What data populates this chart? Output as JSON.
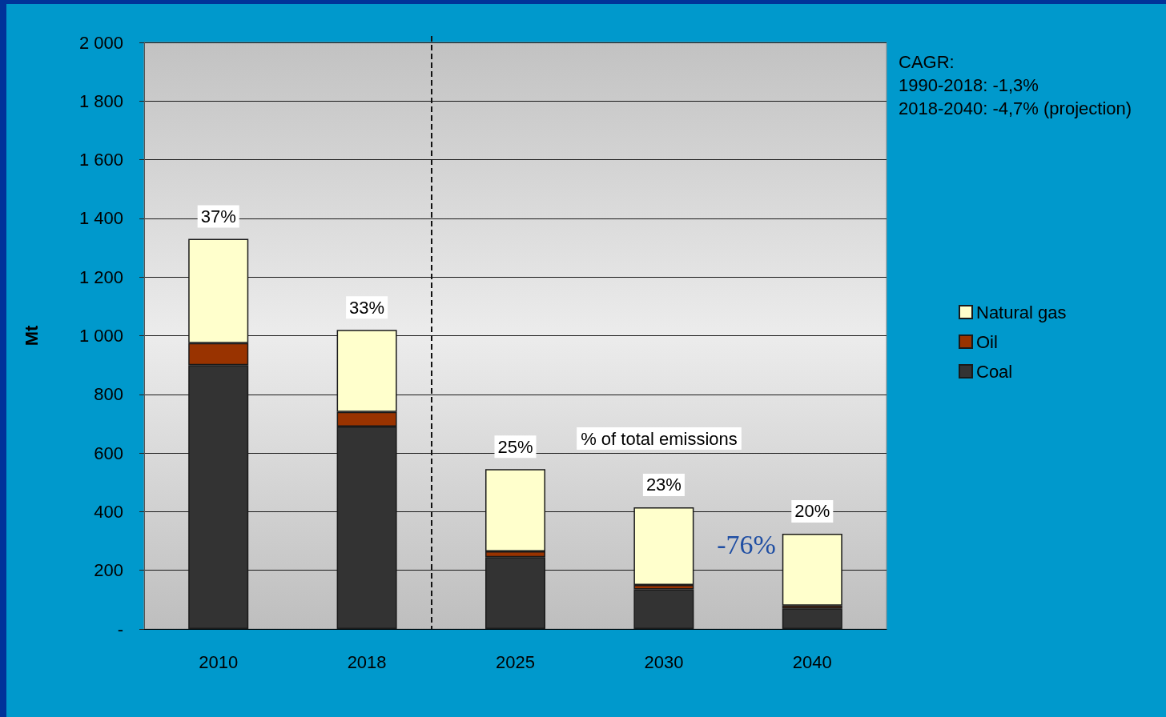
{
  "chart_data": {
    "type": "bar",
    "categories": [
      "2010",
      "2018",
      "2025",
      "2030",
      "2040"
    ],
    "series": [
      {
        "name": "Coal",
        "color": "#333333",
        "values": [
          900,
          690,
          245,
          135,
          70
        ]
      },
      {
        "name": "Oil",
        "color": "#993300",
        "values": [
          75,
          50,
          20,
          15,
          10
        ]
      },
      {
        "name": "Natural gas",
        "color": "#ffffcc",
        "values": [
          355,
          280,
          280,
          265,
          245
        ]
      }
    ],
    "stacked": true,
    "ylabel": "Mt",
    "ylim": [
      0,
      2000
    ],
    "yticks": [
      {
        "value": 0,
        "label": "-"
      },
      200,
      400,
      600,
      800,
      {
        "value": 1000,
        "label": "1 000"
      },
      {
        "value": 1200,
        "label": "1 200"
      },
      {
        "value": 1400,
        "label": "1 400"
      },
      {
        "value": 1600,
        "label": "1 600"
      },
      {
        "value": 1800,
        "label": "1 800"
      },
      {
        "value": 2000,
        "label": "2 000"
      }
    ],
    "grid": "y",
    "legend": "right",
    "annotations": [
      "CAGR:\n1990-2018: -1,3%\n2018-2040: -4,7% (projection)",
      "% of total emissions",
      "-76%",
      {
        "text": "37%",
        "x": "2010",
        "y": 1330
      },
      {
        "text": "33%",
        "x": "2018",
        "y": 1020
      },
      {
        "text": "25%",
        "x": "2025",
        "y": 545
      },
      {
        "text": "23%",
        "x": "2030",
        "y": 415
      },
      {
        "text": "20%",
        "x": "2040",
        "y": 325
      }
    ]
  }
}
